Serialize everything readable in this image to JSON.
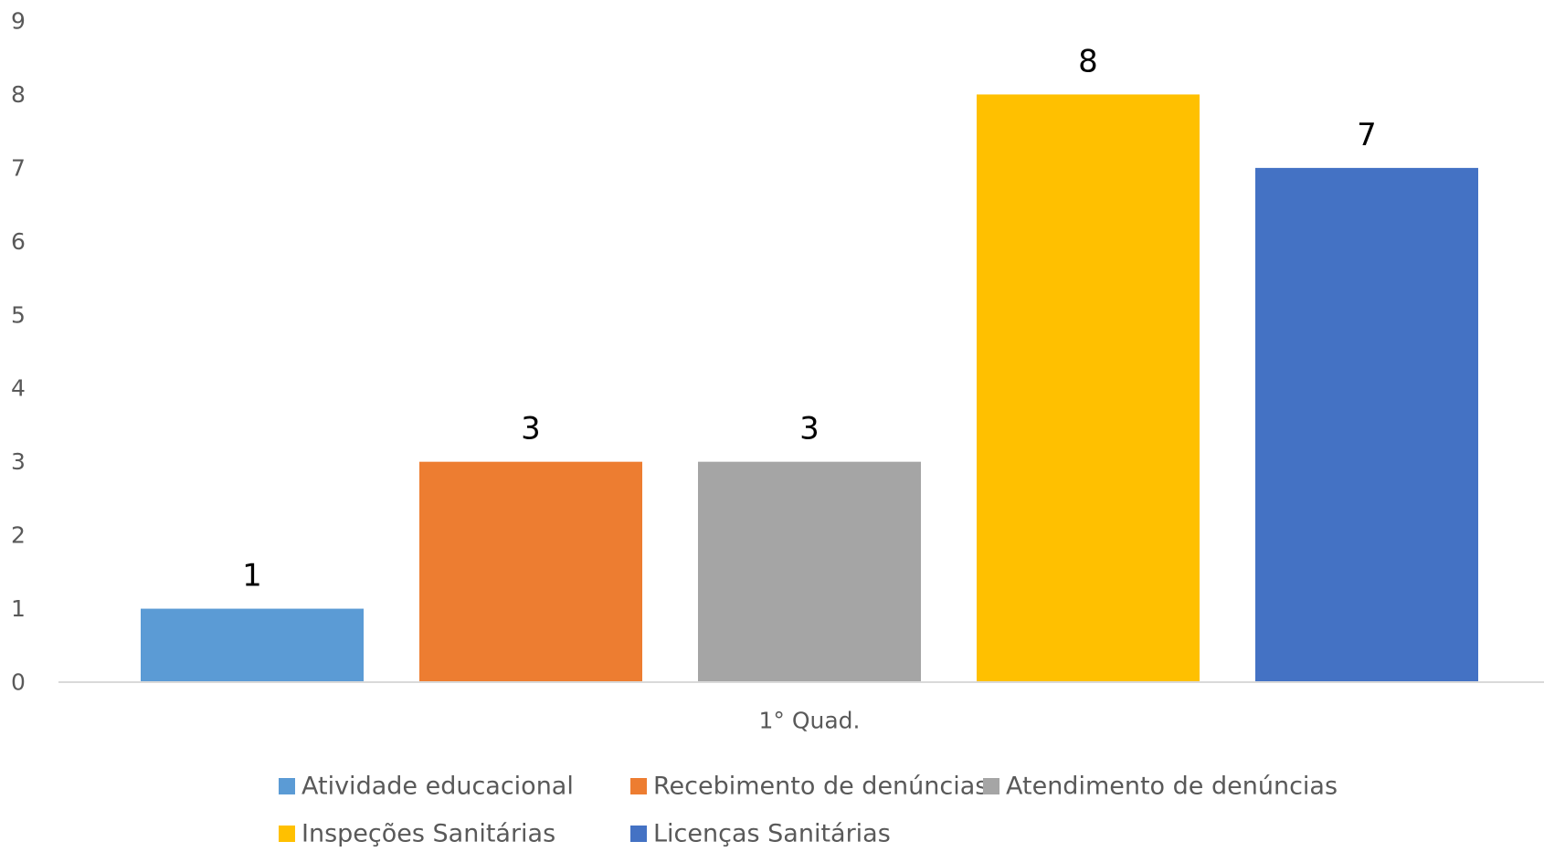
{
  "chart_data": {
    "type": "bar",
    "categories": [
      "1° Quad."
    ],
    "series": [
      {
        "name": "Atividade educacional",
        "values": [
          1
        ],
        "color": "#5B9BD5"
      },
      {
        "name": "Recebimento de denúncias",
        "values": [
          3
        ],
        "color": "#ED7D31"
      },
      {
        "name": "Atendimento de denúncias",
        "values": [
          3
        ],
        "color": "#A5A5A5"
      },
      {
        "name": "Inspeções Sanitárias",
        "values": [
          8
        ],
        "color": "#FFC000"
      },
      {
        "name": "Licenças Sanitárias",
        "values": [
          7
        ],
        "color": "#4472C4"
      }
    ],
    "ylim": [
      0,
      9
    ],
    "yticks": [
      0,
      1,
      2,
      3,
      4,
      5,
      6,
      7,
      8,
      9
    ],
    "grid": false,
    "data_labels": true,
    "legend_position": "bottom"
  }
}
